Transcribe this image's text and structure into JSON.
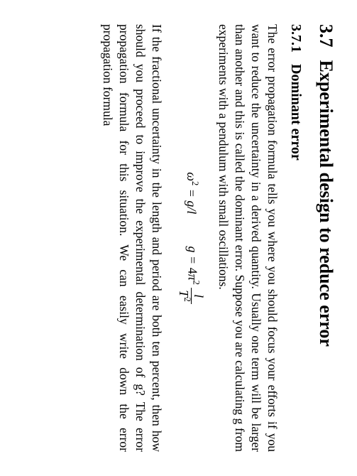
{
  "section": {
    "number": "3.7",
    "title": "Experimental design to reduce error",
    "fontsize": 26,
    "fontweight": "bold"
  },
  "subsection": {
    "number": "3.7.1",
    "title": "Dominant error",
    "fontsize": 20,
    "fontweight": "bold"
  },
  "paragraph1": "The error propagation formula tells you where you should focus your efforts if you want to reduce the uncertainty in a derived quantity. Usually one term will be larger than another and this is called the dominant error. Suppose you are calculating g from experiments with a pendulum with small oscillations.",
  "equation": {
    "lhs1": "ω",
    "lhs1_sup": "2",
    "eq1_rhs": " = g/l",
    "eq2_lhs": "g = ",
    "coef_num": "4",
    "coef_pi": "π",
    "coef_sup": "2",
    "frac_num": "l",
    "frac_den_base": "T",
    "frac_den_sup": "2",
    "fontsize": 18
  },
  "paragraph2": "If the fractional uncertainty in the length and period are both ten percent, then how should you proceed to improve the experimental determination of g? The error propagation formula for this situation. We can easily write down the error propagation formula",
  "typography": {
    "body_font": "Times New Roman",
    "body_fontsize": 17.5,
    "text_color": "#000000",
    "background_color": "#ffffff",
    "line_height": 1.32,
    "alignment": "justify"
  },
  "page": {
    "rotation_deg": 90,
    "content_width": 670,
    "content_height": 503
  }
}
